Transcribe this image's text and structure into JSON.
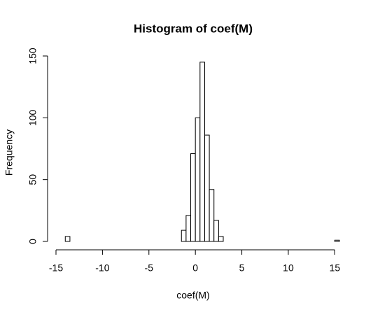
{
  "chart_data": {
    "type": "histogram",
    "title": "Histogram of coef(M)",
    "x_label": "coef(M)",
    "y_label": "Frequency",
    "bins": [
      -14,
      -13.5,
      -13,
      -12.5,
      -12,
      -11.5,
      -11,
      -10.5,
      -10,
      -9.5,
      -9,
      -8.5,
      -8,
      -7.5,
      -7,
      -6.5,
      -6,
      -5.5,
      -5,
      -4.5,
      -4,
      -3.5,
      -3,
      -2.5,
      -2,
      -1.5,
      -1,
      -0.5,
      0,
      0.5,
      1,
      1.5,
      2,
      2.5,
      3,
      3.5,
      4,
      4.5,
      5,
      5.5,
      6,
      6.5,
      7,
      7.5,
      8,
      8.5,
      9,
      9.5,
      10,
      10.5,
      11,
      11.5,
      12,
      12.5,
      13,
      13.5,
      14,
      14.5,
      15,
      15.5
    ],
    "values": [
      4,
      0,
      0,
      0,
      0,
      0,
      0,
      0,
      0,
      0,
      0,
      0,
      0,
      0,
      0,
      0,
      0,
      0,
      0,
      0,
      0,
      0,
      0,
      0,
      0,
      9,
      21,
      71,
      100,
      145,
      86,
      42,
      17,
      4,
      0,
      0,
      0,
      0,
      0,
      0,
      0,
      0,
      0,
      0,
      0,
      0,
      0,
      0,
      0,
      0,
      0,
      0,
      0,
      0,
      0,
      0,
      0,
      0,
      1
    ],
    "color": "#ffffff",
    "edge_color": "#000000",
    "xlim": [
      -15,
      15.5
    ],
    "xticks": [
      -15,
      -10,
      -5,
      0,
      5,
      10,
      15
    ],
    "ylim": [
      0,
      150
    ],
    "yticks": [
      0,
      50,
      100,
      150
    ]
  }
}
